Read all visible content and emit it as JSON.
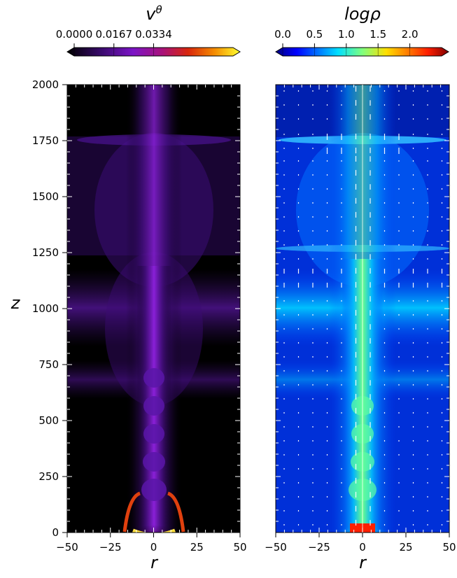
{
  "chart_data": [
    {
      "type": "heatmap",
      "panel": "left",
      "title": "",
      "colorbar": {
        "label_base": "v",
        "label_sup": "θ",
        "ticks": [
          0.0,
          0.0167,
          0.0334
        ],
        "tick_labels": [
          "0.0000",
          "0.0167",
          "0.0334"
        ],
        "colormap": "inferno/gnuplot"
      },
      "xlabel": "r",
      "ylabel": "z",
      "xlim": [
        -50,
        50
      ],
      "ylim": [
        0,
        2000
      ],
      "xticks": [
        -50,
        -25,
        0,
        25,
        50
      ],
      "xtick_labels": [
        "−50",
        "−25",
        "0",
        "25",
        "50"
      ],
      "yticks": [
        0,
        250,
        500,
        750,
        1000,
        1250,
        1500,
        1750,
        2000
      ],
      "ytick_labels": [
        "0",
        "250",
        "500",
        "750",
        "1000",
        "1250",
        "1500",
        "1750",
        "2000"
      ]
    },
    {
      "type": "heatmap",
      "panel": "right",
      "colorbar": {
        "label": "logρ",
        "ticks": [
          0.0,
          0.5,
          1.0,
          1.5,
          2.0
        ],
        "tick_labels": [
          "0.0",
          "0.5",
          "1.0",
          "1.5",
          "2.0"
        ],
        "colormap": "jet"
      },
      "xlabel": "r",
      "xlim": [
        -50,
        50
      ],
      "ylim": [
        0,
        2000
      ],
      "xticks": [
        -50,
        -25,
        0,
        25,
        50
      ],
      "xtick_labels": [
        "−50",
        "−25",
        "0",
        "25",
        "50"
      ],
      "overlay": "velocity vectors (white arrows)"
    }
  ]
}
